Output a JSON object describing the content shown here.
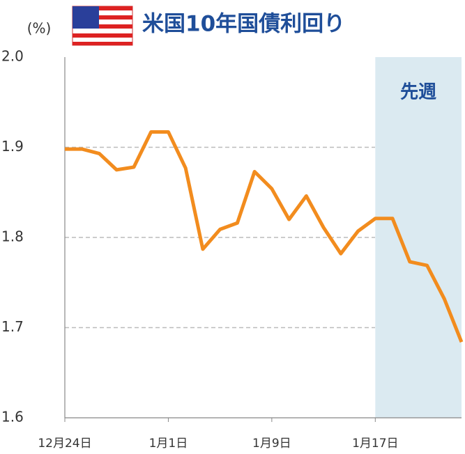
{
  "chart_data": {
    "type": "line",
    "title": "米国10年国債利回り",
    "y_unit": "(%)",
    "categories": [
      "12月24日",
      null,
      null,
      null,
      null,
      null,
      "1月1日",
      null,
      null,
      null,
      null,
      null,
      "1月9日",
      null,
      null,
      null,
      null,
      null,
      "1月17日",
      null,
      null,
      null,
      null,
      null
    ],
    "series": [
      {
        "name": "米国10年国債利回り",
        "color": "#f28c1e",
        "values": [
          1.898,
          1.898,
          1.893,
          1.875,
          1.878,
          1.917,
          1.917,
          1.877,
          1.787,
          1.809,
          1.816,
          1.873,
          1.854,
          1.82,
          1.846,
          1.811,
          1.782,
          1.807,
          1.821,
          1.821,
          1.773,
          1.769,
          1.732,
          1.684
        ]
      }
    ],
    "ylim": [
      1.6,
      2.0
    ],
    "yticks": [
      1.6,
      1.7,
      1.8,
      1.9,
      {
        "value": 2.0,
        "label": "2.0"
      }
    ],
    "grid": true,
    "highlight": {
      "label": "先週",
      "start": "1月17日",
      "color": "#dbeaf1"
    }
  }
}
